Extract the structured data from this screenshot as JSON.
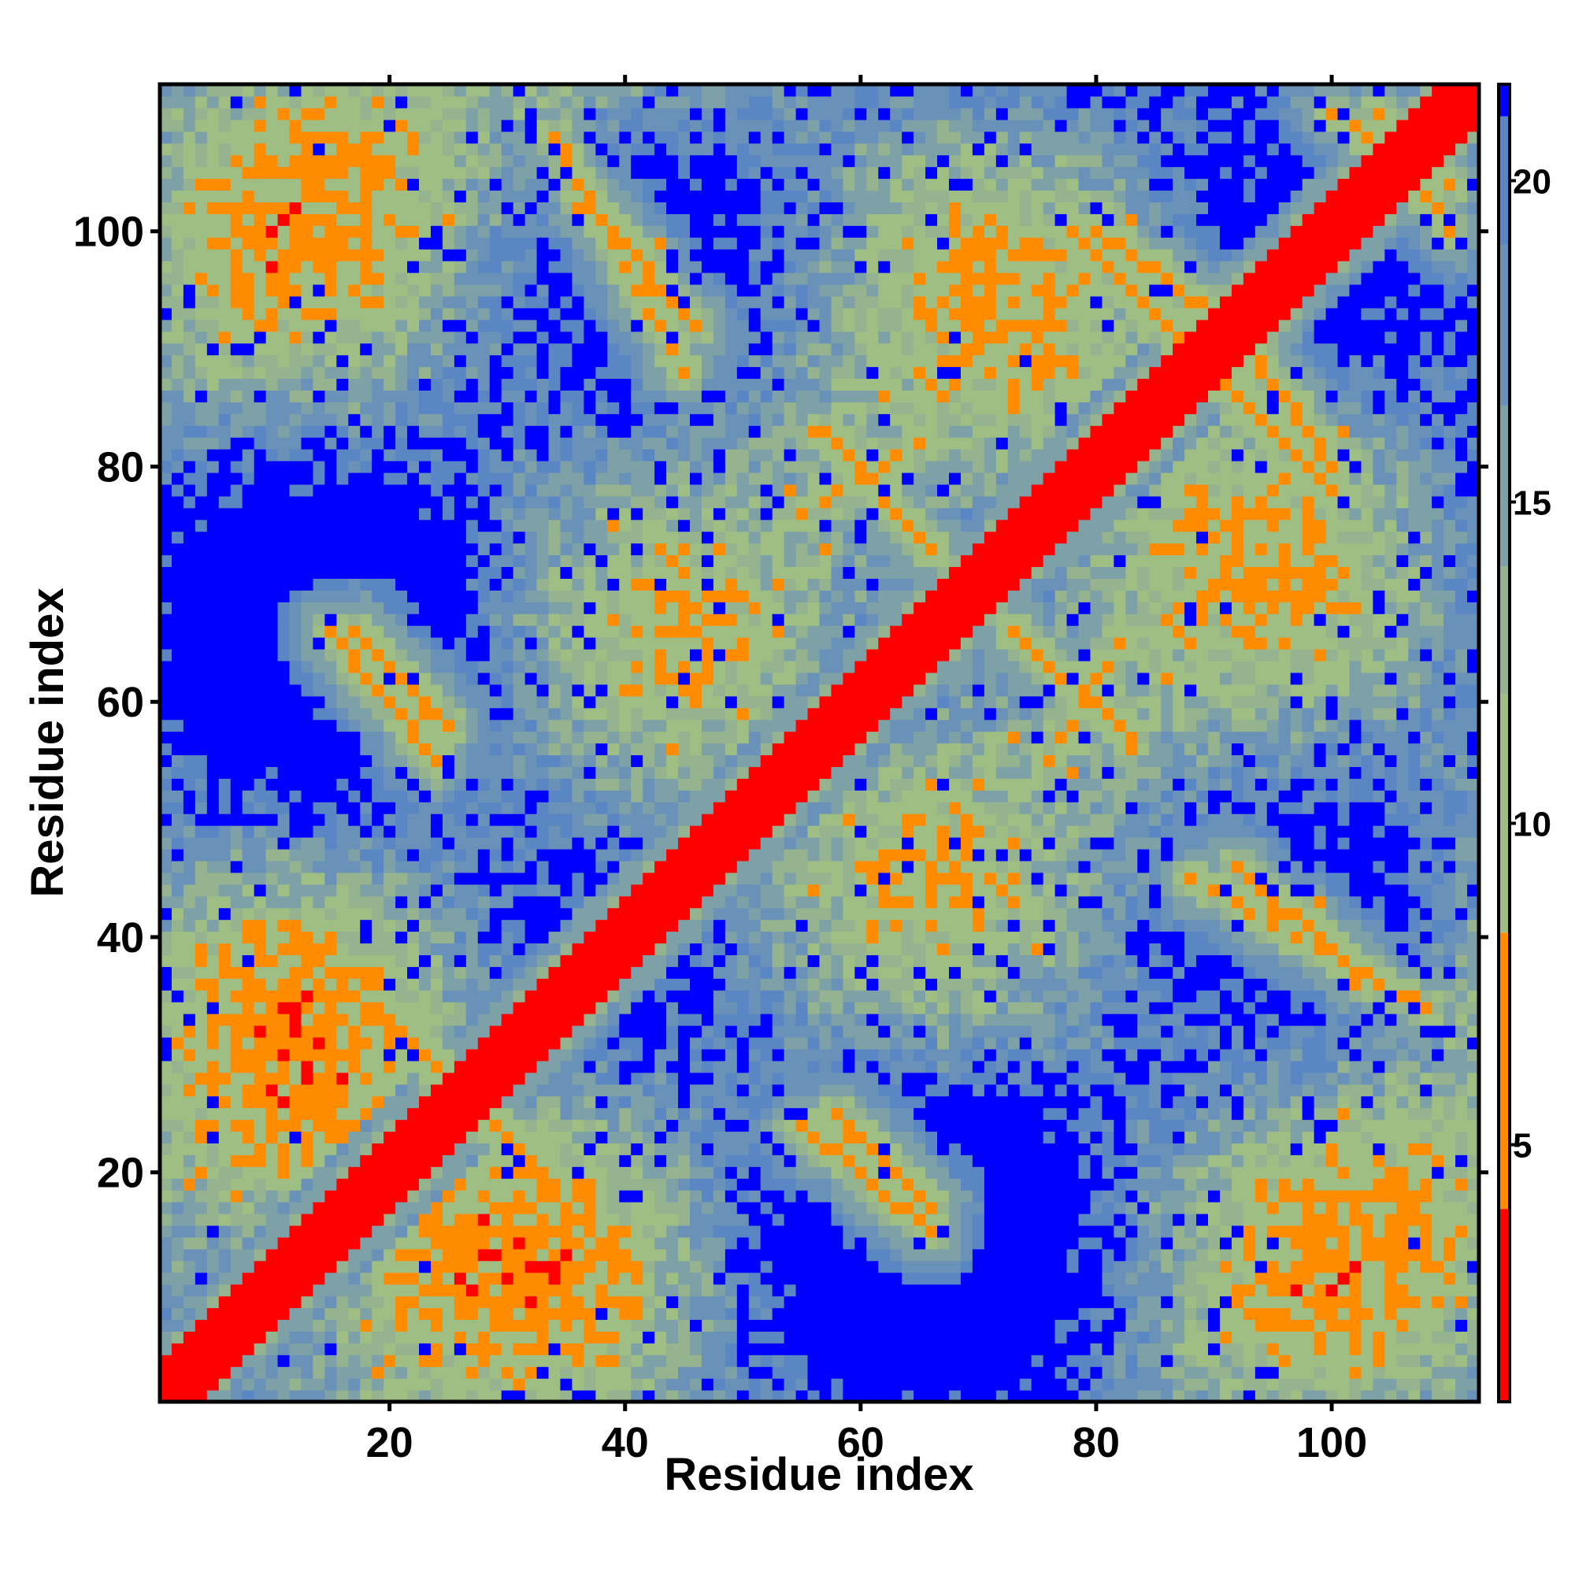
{
  "chart_data": {
    "type": "heatmap",
    "title": "",
    "xlabel": "Residue index",
    "ylabel": "Residue index",
    "n_residues": 112,
    "xlim": [
      1,
      112
    ],
    "ylim": [
      1,
      112
    ],
    "x_ticks": [
      20,
      40,
      60,
      80,
      100
    ],
    "y_ticks": [
      20,
      40,
      60,
      80,
      100
    ],
    "x_tick_labels": [
      "20",
      "40",
      "60",
      "80",
      "100"
    ],
    "y_tick_labels": [
      "20",
      "40",
      "60",
      "80",
      "100"
    ],
    "colorbar": {
      "range": [
        1,
        21.5
      ],
      "ticks": [
        5,
        10,
        15,
        20
      ],
      "tick_labels": [
        "5",
        "10",
        "15",
        "20"
      ],
      "saturation_value": 21.5,
      "colors": {
        "near": "#ff0000",
        "close": "#ff8c00",
        "mid": "#9bb882",
        "far": "#5b86c4",
        "saturated": "#0000ff"
      }
    },
    "grid": false,
    "legend": "colorbar-right",
    "matrix_note": "symmetric residue-residue distance map; diagonal distance 0-2 (red), secondary contacts 5-8 (orange), 10-20 (green/steel blue), >=21 saturated (blue)",
    "contact_bands": [
      {
        "i": [
          12,
          25
        ],
        "j": [
          28,
          40
        ],
        "orientation": "anti",
        "value": 6.0
      },
      {
        "i": [
          34,
          45
        ],
        "j": [
          88,
          108
        ],
        "orientation": "anti",
        "value": 6.5
      },
      {
        "i": [
          57,
          66
        ],
        "j": [
          73,
          83
        ],
        "orientation": "anti",
        "value": 6.0
      },
      {
        "i": [
          76,
          82
        ],
        "j": [
          55,
          65
        ],
        "orientation": "parallel",
        "value": 6.5
      },
      {
        "i": [
          80,
          90
        ],
        "j": [
          93,
          100
        ],
        "orientation": "anti",
        "value": 6.0
      },
      {
        "i": [
          90,
          100
        ],
        "j": [
          78,
          88
        ],
        "orientation": "anti",
        "value": 6.5
      },
      {
        "i": [
          92,
          102
        ],
        "j": [
          37,
          46
        ],
        "orientation": "anti",
        "value": 6.5
      },
      {
        "i": [
          17,
          25
        ],
        "j": [
          58,
          66
        ],
        "orientation": "anti",
        "value": 6.0
      },
      {
        "i": [
          55,
          66
        ],
        "j": [
          15,
          24
        ],
        "orientation": "anti",
        "value": 6.5
      },
      {
        "i": [
          104,
          110
        ],
        "j": [
          100,
          110
        ],
        "orientation": "anti",
        "value": 6.5
      }
    ]
  }
}
